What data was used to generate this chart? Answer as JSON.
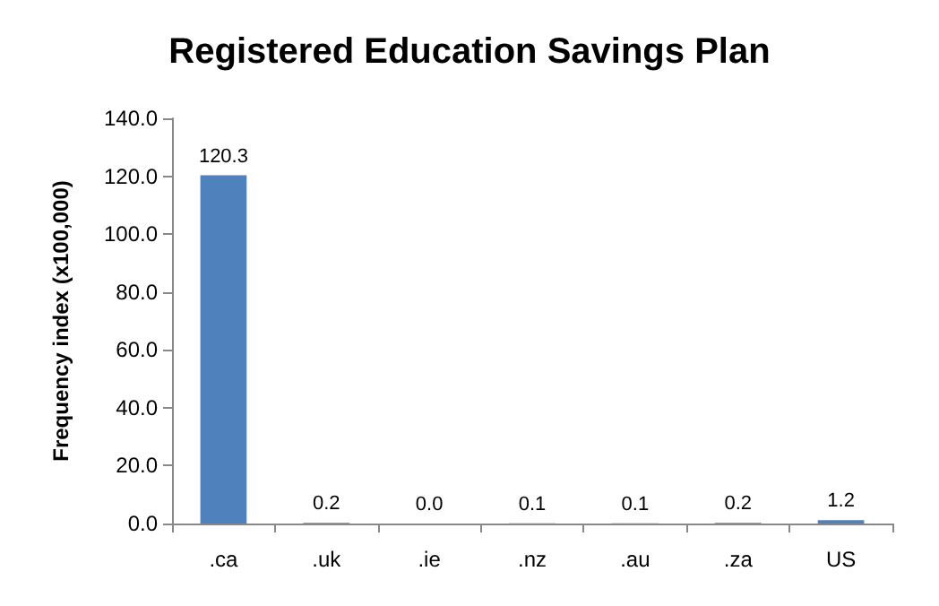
{
  "chart_data": {
    "type": "bar",
    "title": "Registered Education Savings Plan",
    "ylabel": "Frequency index (x100,000)",
    "categories": [
      ".ca",
      ".uk",
      ".ie",
      ".nz",
      ".au",
      ".za",
      "US"
    ],
    "values": [
      120.3,
      0.2,
      0.0,
      0.1,
      0.1,
      0.2,
      1.2
    ],
    "value_labels": [
      "120.3",
      "0.2",
      "0.0",
      "0.1",
      "0.1",
      "0.2",
      "1.2"
    ],
    "color": "#4f81bd",
    "ylim": [
      0,
      140
    ],
    "yticks": [
      {
        "value": 0,
        "label": "0.0"
      },
      {
        "value": 20,
        "label": "20.0"
      },
      {
        "value": 40,
        "label": "40.0"
      },
      {
        "value": 60,
        "label": "60.0"
      },
      {
        "value": 80,
        "label": "80.0"
      },
      {
        "value": 100,
        "label": "100.0"
      },
      {
        "value": 120,
        "label": "120.0"
      },
      {
        "value": 140,
        "label": "140.0"
      }
    ],
    "grid": false
  }
}
